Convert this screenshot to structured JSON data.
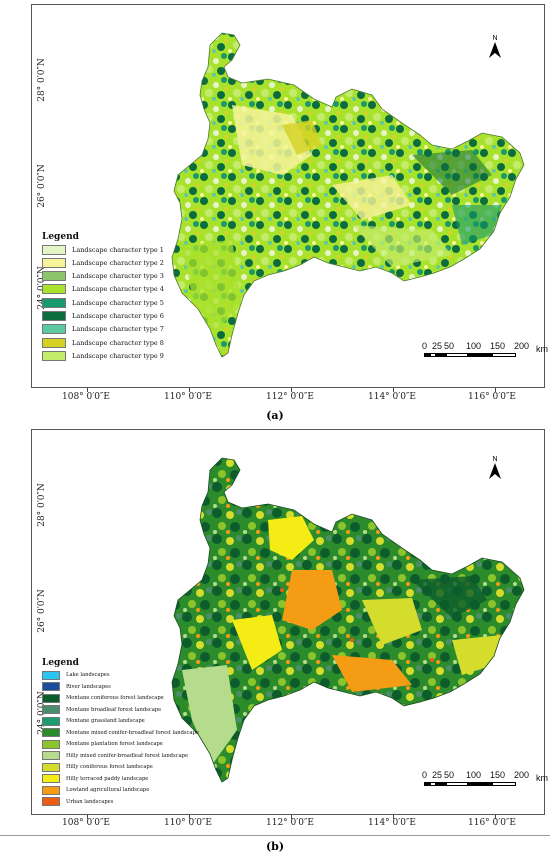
{
  "panel_a": {
    "legend_title": "Legend",
    "legend_items": [
      {
        "label": "Landscape character type 1",
        "color": "#e6f5c8"
      },
      {
        "label": "Landscape character type 2",
        "color": "#f6f39a"
      },
      {
        "label": "Landscape character type 3",
        "color": "#8cc46c"
      },
      {
        "label": "Landscape character type 4",
        "color": "#a8e22c"
      },
      {
        "label": "Landscape character type 5",
        "color": "#169a6c"
      },
      {
        "label": "Landscape character type 6",
        "color": "#0c6e3e"
      },
      {
        "label": "Landscape character type 7",
        "color": "#5ec8a0"
      },
      {
        "label": "Landscape character type 8",
        "color": "#d6d224"
      },
      {
        "label": "Landscape character type 9",
        "color": "#c4ec6c"
      }
    ],
    "caption": "(a)"
  },
  "panel_b": {
    "legend_title": "Legend",
    "legend_items": [
      {
        "label": "Lake landscapes",
        "color": "#2cc4f0"
      },
      {
        "label": "River landscapes",
        "color": "#1c4c9c"
      },
      {
        "label": "Montane coniferous forest landscape",
        "color": "#0c5c2c"
      },
      {
        "label": "Montane broadleaf forest landscape",
        "color": "#4c8c6c"
      },
      {
        "label": "Montane grassland landscape",
        "color": "#1c9c6c"
      },
      {
        "label": "Montane mixed conifer-broadleaf forest landscape",
        "color": "#2c8c2c"
      },
      {
        "label": "Montane plantation forest landscape",
        "color": "#8cc42c"
      },
      {
        "label": "Hilly mixed conifer-broadleaf forest landscape",
        "color": "#b4dc8c"
      },
      {
        "label": "Hilly coniferous forest landscape",
        "color": "#d4dc2c"
      },
      {
        "label": "Hilly terraced paddy landscape",
        "color": "#f4ec14"
      },
      {
        "label": "Lowland agricultural landscape",
        "color": "#f49c14"
      },
      {
        "label": "Urban landscapes",
        "color": "#ec5c14"
      }
    ],
    "caption": "(b)"
  },
  "axes": {
    "latitudes": [
      "28° 0′0″N",
      "26° 0′0″N",
      "24° 0′0″N"
    ],
    "longitudes": [
      "108° 0′0″E",
      "110° 0′0″E",
      "112° 0′0″E",
      "114° 0′0″E",
      "116° 0′0″E"
    ]
  },
  "scale_bar": {
    "ticks": [
      "0",
      "25",
      "50",
      "100",
      "150",
      "200"
    ],
    "unit": "km"
  },
  "north_label": "N"
}
